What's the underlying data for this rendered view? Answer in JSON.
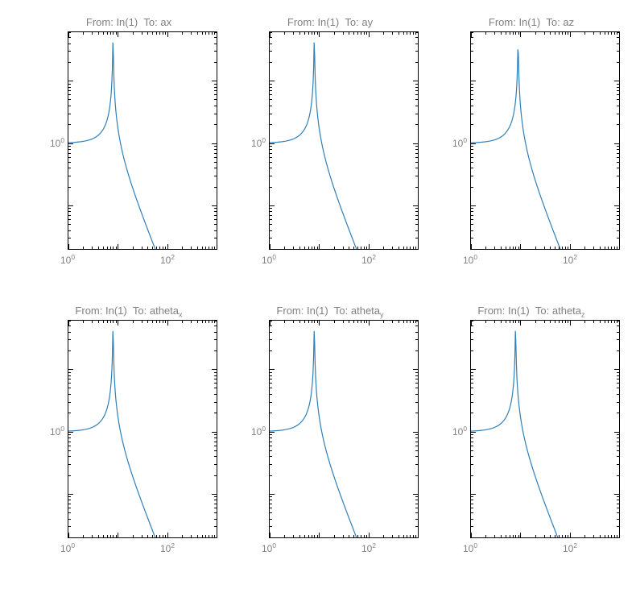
{
  "figure": {
    "rows": 2,
    "cols": 3,
    "background_color": "#ffffff",
    "line_color": "#2f7fb7",
    "line_width": 1.2,
    "axis_color": "#000000",
    "tick_font_color": "#808080",
    "title_font_color": "#808080",
    "tick_fontsize": 12,
    "title_fontsize": 13,
    "panels": [
      {
        "title_html": "From: In(1)&nbsp;&nbsp;To: ax",
        "xscale": "log",
        "yscale": "log",
        "xlim": [
          1,
          1000
        ],
        "ylim": [
          0.02,
          60
        ],
        "xticks": [
          1,
          100
        ],
        "xtick_labels_html": [
          "10<sup>0</sup>",
          "10<sup>2</sup>"
        ],
        "yticks": [
          1
        ],
        "ytick_labels_html": [
          "10<sup>0</sup>"
        ],
        "series": {
          "type": "resonance",
          "base_level": 1.0,
          "peak_freq": 8.0,
          "peak_height": 50.0,
          "rolloff_value_at_1000": 0.02
        }
      },
      {
        "title_html": "From: In(1)&nbsp;&nbsp;To: ay",
        "xscale": "log",
        "yscale": "log",
        "xlim": [
          1,
          1000
        ],
        "ylim": [
          0.02,
          60
        ],
        "xticks": [
          1,
          100
        ],
        "xtick_labels_html": [
          "10<sup>0</sup>",
          "10<sup>2</sup>"
        ],
        "yticks": [
          1
        ],
        "ytick_labels_html": [
          "10<sup>0</sup>"
        ],
        "series": {
          "type": "resonance",
          "base_level": 1.0,
          "peak_freq": 8.0,
          "peak_height": 50.0,
          "rolloff_value_at_1000": 0.02
        }
      },
      {
        "title_html": "From: In(1)&nbsp;&nbsp;To: az",
        "xscale": "log",
        "yscale": "log",
        "xlim": [
          1,
          1000
        ],
        "ylim": [
          0.02,
          60
        ],
        "xticks": [
          1,
          100
        ],
        "xtick_labels_html": [
          "10<sup>0</sup>",
          "10<sup>2</sup>"
        ],
        "yticks": [
          1
        ],
        "ytick_labels_html": [
          "10<sup>0</sup>"
        ],
        "series": {
          "type": "resonance",
          "base_level": 1.0,
          "peak_freq": 9.0,
          "peak_height": 40.0,
          "rolloff_value_at_1000": 0.02
        }
      },
      {
        "title_html": "From: In(1)&nbsp;&nbsp;To: atheta<sub>x</sub>",
        "xscale": "log",
        "yscale": "log",
        "xlim": [
          1,
          1000
        ],
        "ylim": [
          0.02,
          60
        ],
        "xticks": [
          1,
          100
        ],
        "xtick_labels_html": [
          "10<sup>0</sup>",
          "10<sup>2</sup>"
        ],
        "yticks": [
          1
        ],
        "ytick_labels_html": [
          "10<sup>0</sup>"
        ],
        "series": {
          "type": "resonance",
          "base_level": 1.0,
          "peak_freq": 8.0,
          "peak_height": 50.0,
          "rolloff_value_at_1000": 0.02
        }
      },
      {
        "title_html": "From: In(1)&nbsp;&nbsp;To: atheta<sub>y</sub>",
        "xscale": "log",
        "yscale": "log",
        "xlim": [
          1,
          1000
        ],
        "ylim": [
          0.02,
          60
        ],
        "xticks": [
          1,
          100
        ],
        "xtick_labels_html": [
          "10<sup>0</sup>",
          "10<sup>2</sup>"
        ],
        "yticks": [
          1
        ],
        "ytick_labels_html": [
          "10<sup>0</sup>"
        ],
        "series": {
          "type": "resonance",
          "base_level": 1.0,
          "peak_freq": 8.0,
          "peak_height": 50.0,
          "rolloff_value_at_1000": 0.02
        }
      },
      {
        "title_html": "From: In(1)&nbsp;&nbsp;To: atheta<sub>z</sub>",
        "xscale": "log",
        "yscale": "log",
        "xlim": [
          1,
          1000
        ],
        "ylim": [
          0.02,
          60
        ],
        "xticks": [
          1,
          100
        ],
        "xtick_labels_html": [
          "10<sup>0</sup>",
          "10<sup>2</sup>"
        ],
        "yticks": [
          1
        ],
        "ytick_labels_html": [
          "10<sup>0</sup>"
        ],
        "series": {
          "type": "resonance",
          "base_level": 1.0,
          "peak_freq": 8.0,
          "peak_height": 50.0,
          "rolloff_value_at_1000": 0.02
        }
      }
    ]
  }
}
